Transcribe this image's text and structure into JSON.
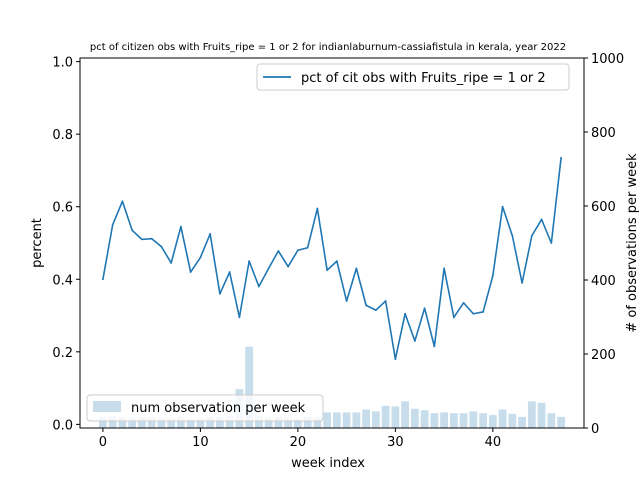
{
  "chart_data": {
    "type": "line",
    "title": "pct of citizen obs with Fruits_ripe = 1 or 2 for indianlaburnum-cassiafistula in kerala, year 2022",
    "xlabel": "week index",
    "ylabel": "percent",
    "y2label": "# of observations per week",
    "xlim": [
      -2.35,
      49.35
    ],
    "ylim": [
      -0.01,
      1.01
    ],
    "y2lim": [
      0,
      1000
    ],
    "x_ticks": [
      0,
      10,
      20,
      30,
      40
    ],
    "y_ticks": [
      0.0,
      0.2,
      0.4,
      0.6,
      0.8,
      1.0
    ],
    "y_tick_labels": [
      "0.0",
      "0.2",
      "0.4",
      "0.6",
      "0.8",
      "1.0"
    ],
    "y2_ticks": [
      0,
      200,
      400,
      600,
      800,
      1000
    ],
    "grid": false,
    "series": [
      {
        "name": "pct of cit obs with Fruits_ripe = 1 or 2",
        "axis": "left",
        "kind": "line",
        "color": "#1f77b4",
        "x": [
          0,
          1,
          2,
          3,
          4,
          5,
          6,
          7,
          8,
          9,
          10,
          11,
          12,
          13,
          14,
          15,
          16,
          17,
          18,
          19,
          20,
          21,
          22,
          23,
          24,
          25,
          26,
          27,
          28,
          29,
          30,
          31,
          32,
          33,
          34,
          35,
          36,
          37,
          38,
          39,
          40,
          41,
          42,
          43,
          44,
          45,
          46,
          47
        ],
        "values": [
          0.4,
          0.55,
          0.615,
          0.535,
          0.51,
          0.512,
          0.49,
          0.445,
          0.545,
          0.42,
          0.46,
          0.525,
          0.36,
          0.42,
          0.295,
          0.45,
          0.38,
          0.43,
          0.478,
          0.435,
          0.48,
          0.487,
          0.595,
          0.425,
          0.45,
          0.34,
          0.43,
          0.328,
          0.315,
          0.34,
          0.18,
          0.305,
          0.23,
          0.32,
          0.215,
          0.43,
          0.295,
          0.335,
          0.305,
          0.31,
          0.41,
          0.6,
          0.52,
          0.39,
          0.52,
          0.565,
          0.5,
          0.735
        ]
      },
      {
        "name": "num observation per week",
        "axis": "right",
        "kind": "bar",
        "color": "#1f77b4",
        "opacity": 0.25,
        "x": [
          0,
          1,
          2,
          3,
          4,
          5,
          6,
          7,
          8,
          9,
          10,
          11,
          12,
          13,
          14,
          15,
          16,
          17,
          18,
          19,
          20,
          21,
          22,
          23,
          24,
          25,
          26,
          27,
          28,
          29,
          30,
          31,
          32,
          33,
          34,
          35,
          36,
          37,
          38,
          39,
          40,
          41,
          42,
          43,
          44,
          45,
          46,
          47
        ],
        "values": [
          30,
          32,
          30,
          28,
          30,
          30,
          28,
          28,
          30,
          25,
          28,
          30,
          30,
          32,
          105,
          220,
          32,
          28,
          30,
          30,
          25,
          30,
          30,
          42,
          42,
          42,
          42,
          50,
          45,
          60,
          58,
          72,
          52,
          48,
          40,
          42,
          40,
          40,
          45,
          40,
          35,
          50,
          38,
          30,
          72,
          68,
          40,
          30
        ]
      }
    ],
    "legends": [
      {
        "entries": [
          "pct of cit obs with Fruits_ripe = 1 or 2"
        ],
        "placement": "top-right"
      },
      {
        "entries": [
          "num observation per week"
        ],
        "placement": "bottom-left"
      }
    ]
  }
}
